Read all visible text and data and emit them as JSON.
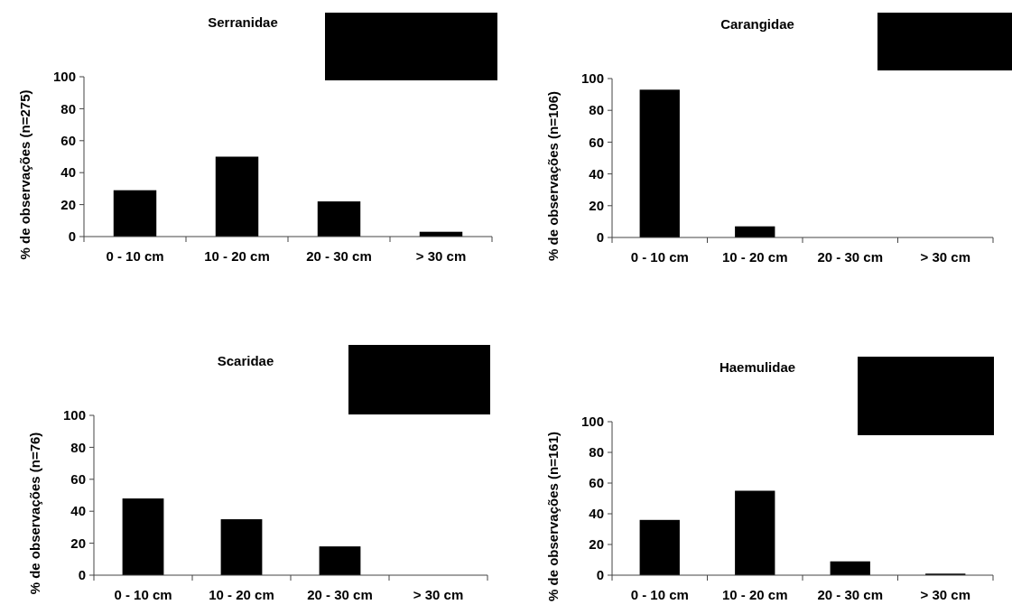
{
  "chart_data": [
    {
      "type": "bar",
      "title": "Serranidae",
      "ylabel": "% de observações (n=275)",
      "categories": [
        "0 - 10 cm",
        "10 - 20 cm",
        "20 - 30 cm",
        "> 30 cm"
      ],
      "values": [
        29,
        50,
        22,
        3
      ],
      "color": "#000000",
      "ylim": [
        0,
        100
      ],
      "yticks": [
        0,
        20,
        40,
        60,
        80,
        100
      ],
      "grid": false
    },
    {
      "type": "bar",
      "title": "Carangidae",
      "ylabel": "% de observações (n=106)",
      "categories": [
        "0 - 10 cm",
        "10 - 20 cm",
        "20 - 30 cm",
        "> 30 cm"
      ],
      "values": [
        93,
        7,
        0,
        0
      ],
      "color": "#000000",
      "ylim": [
        0,
        100
      ],
      "yticks": [
        0,
        20,
        40,
        60,
        80,
        100
      ],
      "grid": false
    },
    {
      "type": "bar",
      "title": "Scaridae",
      "ylabel": "% de observações (n=76)",
      "categories": [
        "0 - 10 cm",
        "10 - 20 cm",
        "20 - 30 cm",
        "> 30 cm"
      ],
      "values": [
        48,
        35,
        18,
        0
      ],
      "color": "#000000",
      "ylim": [
        0,
        100
      ],
      "yticks": [
        0,
        20,
        40,
        60,
        80,
        100
      ],
      "grid": false
    },
    {
      "type": "bar",
      "title": "Haemulidae",
      "ylabel": "% de observações (n=161)",
      "categories": [
        "0 - 10 cm",
        "10 - 20 cm",
        "20 - 30 cm",
        "> 30 cm"
      ],
      "values": [
        36,
        55,
        9,
        1
      ],
      "color": "#000000",
      "ylim": [
        0,
        100
      ],
      "yticks": [
        0,
        20,
        40,
        60,
        80,
        100
      ],
      "grid": false
    }
  ]
}
